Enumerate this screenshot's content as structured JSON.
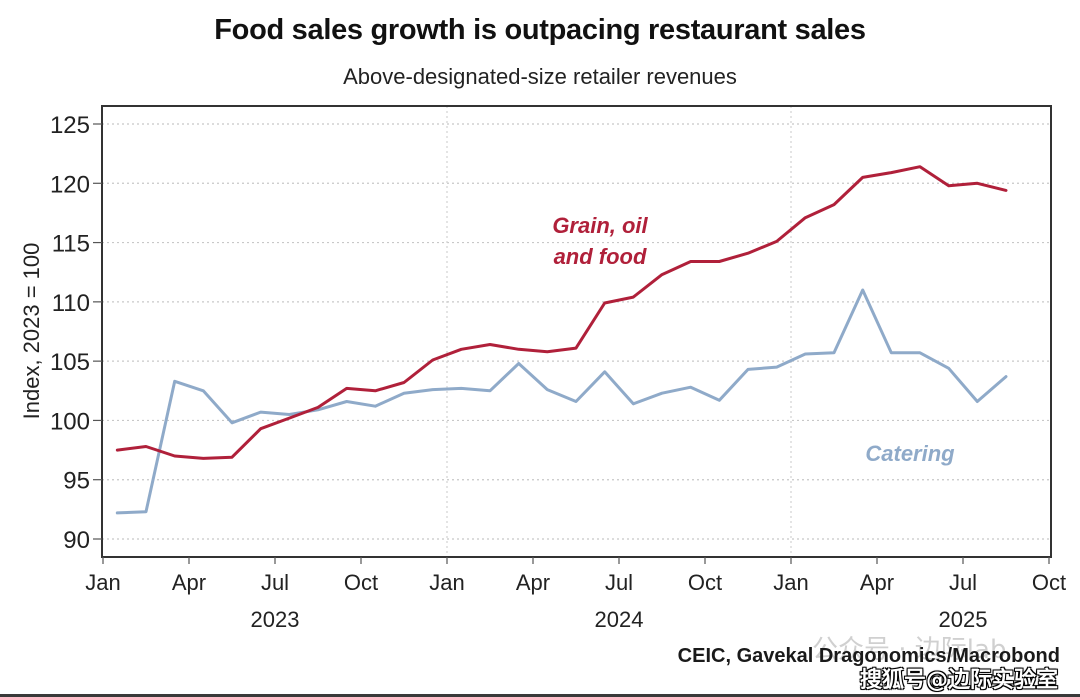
{
  "chart_data": {
    "type": "line",
    "title": "Food sales growth is outpacing restaurant sales",
    "subtitle": "Above-designated-size retailer revenues",
    "ylabel": "Index, 2023 = 100",
    "xlabel": "",
    "ylim": [
      88.5,
      126.5
    ],
    "yticks": [
      90,
      95,
      100,
      105,
      110,
      115,
      120,
      125
    ],
    "xlim": [
      "2023-01",
      "2025-10"
    ],
    "xticks": [
      {
        "label": "Jan",
        "month_index": 0
      },
      {
        "label": "Apr",
        "month_index": 3
      },
      {
        "label": "Jul",
        "month_index": 6
      },
      {
        "label": "Oct",
        "month_index": 9
      },
      {
        "label": "Jan",
        "month_index": 12
      },
      {
        "label": "Apr",
        "month_index": 15
      },
      {
        "label": "Jul",
        "month_index": 18
      },
      {
        "label": "Oct",
        "month_index": 21
      },
      {
        "label": "Jan",
        "month_index": 24
      },
      {
        "label": "Apr",
        "month_index": 27
      },
      {
        "label": "Jul",
        "month_index": 30
      },
      {
        "label": "Oct",
        "month_index": 33
      }
    ],
    "year_labels": [
      {
        "label": "2023",
        "month_index": 6
      },
      {
        "label": "2024",
        "month_index": 18
      },
      {
        "label": "2025",
        "month_index": 30
      }
    ],
    "grid": "horizontal dotted at y ticks; vertical dotted at each January",
    "x": [
      "2023-01",
      "2023-02",
      "2023-03",
      "2023-04",
      "2023-05",
      "2023-06",
      "2023-07",
      "2023-08",
      "2023-09",
      "2023-10",
      "2023-11",
      "2023-12",
      "2024-01",
      "2024-02",
      "2024-03",
      "2024-04",
      "2024-05",
      "2024-06",
      "2024-07",
      "2024-08",
      "2024-09",
      "2024-10",
      "2024-11",
      "2024-12",
      "2025-01",
      "2025-02",
      "2025-03",
      "2025-04",
      "2025-05",
      "2025-06",
      "2025-07",
      "2025-08"
    ],
    "series": [
      {
        "name": "Grain, oil and food",
        "label_lines": [
          "Grain, oil",
          "and food"
        ],
        "color": "#B0203A",
        "values": [
          97.5,
          97.8,
          97.0,
          96.8,
          96.9,
          99.3,
          100.2,
          101.1,
          102.7,
          102.5,
          103.2,
          105.1,
          106.0,
          106.4,
          106.0,
          105.8,
          106.1,
          109.9,
          110.4,
          112.3,
          113.4,
          113.4,
          114.1,
          115.1,
          117.1,
          118.2,
          120.5,
          120.9,
          121.4,
          119.8,
          120.0,
          119.4
        ]
      },
      {
        "name": "Catering",
        "label_lines": [
          "Catering"
        ],
        "color": "#8FAAC9",
        "values": [
          92.2,
          92.3,
          103.3,
          102.5,
          99.8,
          100.7,
          100.5,
          100.9,
          101.6,
          101.2,
          102.3,
          102.6,
          102.7,
          102.5,
          104.8,
          102.6,
          101.6,
          104.1,
          101.4,
          102.3,
          102.8,
          101.7,
          104.3,
          104.5,
          105.6,
          105.7,
          111.0,
          105.7,
          105.7,
          104.4,
          101.6,
          103.7
        ]
      }
    ],
    "legend": "inline labels: 'Grain, oil and food' above red line near center; 'Catering' right of center below blue line",
    "source": "CEIC, Gavekal Dragonomics/Macrobond"
  },
  "watermarks": {
    "faint": "公众号 · 边际lab",
    "outlined": "搜狐号@边际实验室"
  }
}
